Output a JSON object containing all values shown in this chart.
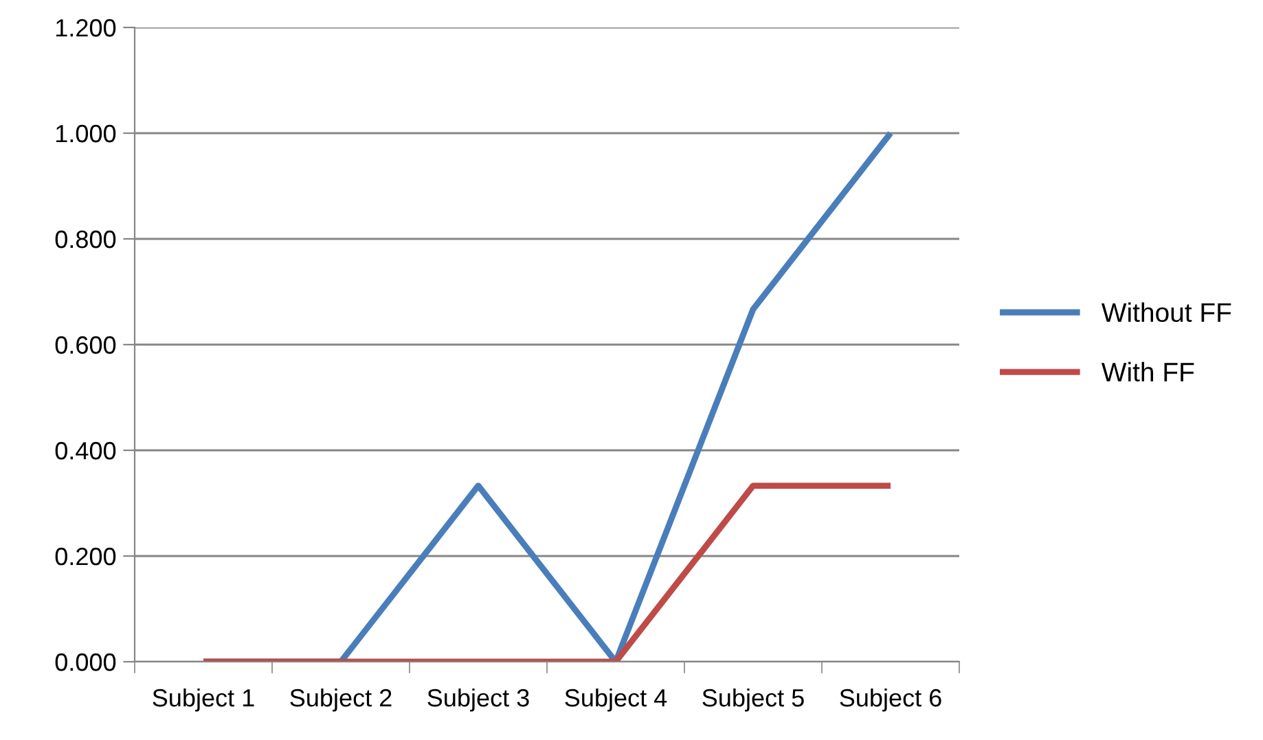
{
  "chart_data": {
    "type": "line",
    "categories": [
      "Subject 1",
      "Subject 2",
      "Subject 3",
      "Subject 4",
      "Subject 5",
      "Subject 6"
    ],
    "series": [
      {
        "name": "Without FF",
        "color": "#4a7ebb",
        "values": [
          0,
          0,
          0.333,
          0,
          0.667,
          1.0
        ]
      },
      {
        "name": "With FF",
        "color": "#be4b48",
        "values": [
          0,
          0,
          0,
          0,
          0.333,
          0.333
        ]
      }
    ],
    "ylim": [
      0,
      1.2
    ],
    "yticks": [
      {
        "value": 0,
        "label": "0.000"
      },
      {
        "value": 0.2,
        "label": "0.200"
      },
      {
        "value": 0.4,
        "label": "0.400"
      },
      {
        "value": 0.6,
        "label": "0.600"
      },
      {
        "value": 0.8,
        "label": "0.800"
      },
      {
        "value": 1.0,
        "label": "1.000"
      },
      {
        "value": 1.2,
        "label": "1.200"
      }
    ],
    "grid": "y",
    "legend": "right",
    "marker": "none",
    "line_style": "solid"
  }
}
